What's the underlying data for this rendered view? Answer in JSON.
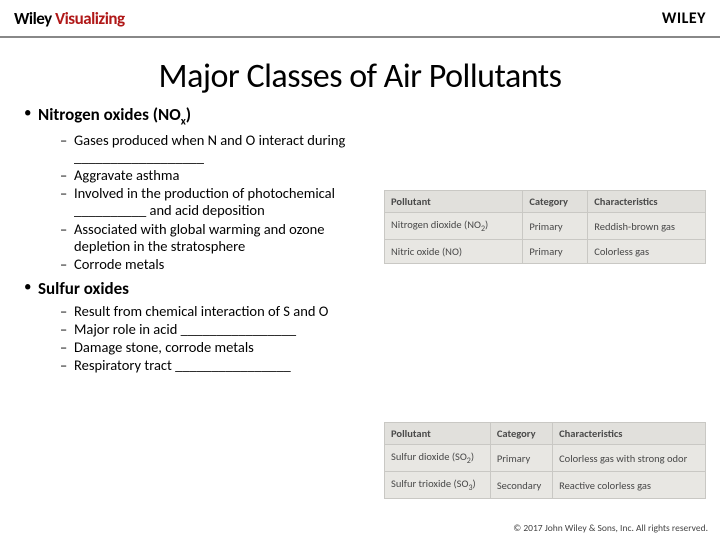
{
  "header": {
    "brand_prefix": "Wiley ",
    "brand_suffix": "Visualizing",
    "brand_right": "WILEY"
  },
  "title": "Major Classes of Air Pollutants",
  "section1": {
    "heading_pre": "Nitrogen oxides (NO",
    "heading_sub": "x",
    "heading_post": ")",
    "b1": "Gases produced when N and  O interact during __________________",
    "b2": "Aggravate asthma",
    "b3": "Involved in the production of photochemical __________ and acid deposition",
    "b4": "Associated with global warming  and ozone depletion in the stratosphere",
    "b5": "Corrode metals"
  },
  "section2": {
    "heading": "Sulfur oxides",
    "b1": "Result from chemical interaction of S and O",
    "b2": "Major role in acid ________________",
    "b3": "Damage stone, corrode metals",
    "b4": "Respiratory tract ________________"
  },
  "table_headers": {
    "c1": "Pollutant",
    "c2": "Category",
    "c3": "Characteristics"
  },
  "table1": {
    "r1": {
      "p_pre": "Nitrogen dioxide (NO",
      "p_post": ")",
      "cat": "Primary",
      "ch": "Reddish-brown gas"
    },
    "r2": {
      "p": "Nitric oxide (NO)",
      "cat": "Primary",
      "ch": "Colorless gas"
    }
  },
  "table2": {
    "r1": {
      "p_pre": "Sulfur dioxide (SO",
      "p_post": ")",
      "cat": "Primary",
      "ch": "Colorless gas with strong odor"
    },
    "r2": {
      "p_pre": "Sulfur trioxide (SO",
      "p_post": ")",
      "cat": "Secondary",
      "ch": "Reactive colorless gas"
    }
  },
  "footer": "© 2017 John Wiley & Sons, Inc. All rights reserved."
}
